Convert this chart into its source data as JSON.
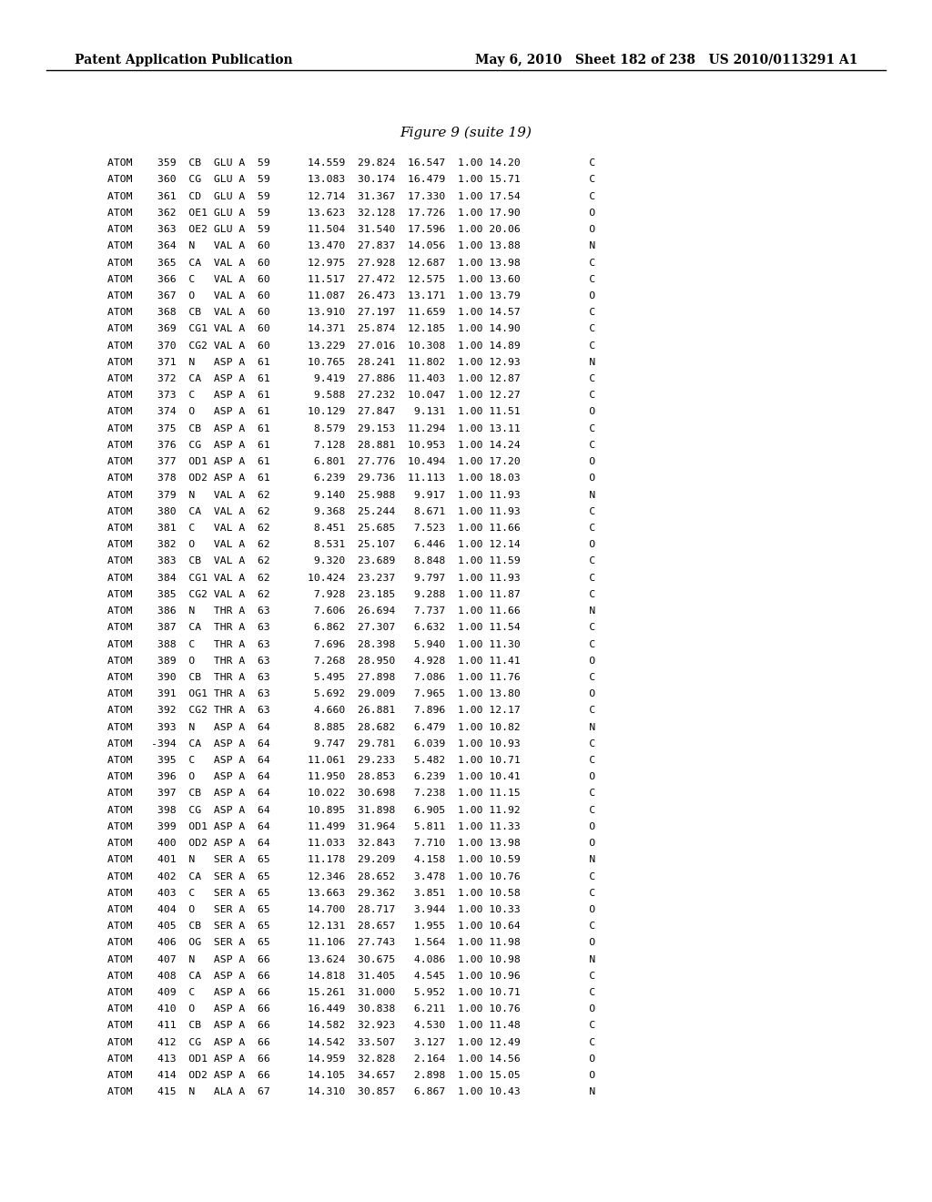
{
  "header_left": "Patent Application Publication",
  "header_right": "May 6, 2010   Sheet 182 of 238   US 2010/0113291 A1",
  "figure_title": "Figure 9 (suite 19)",
  "rows": [
    "ATOM    359  CB  GLU A  59      14.559  29.824  16.547  1.00 14.20           C",
    "ATOM    360  CG  GLU A  59      13.083  30.174  16.479  1.00 15.71           C",
    "ATOM    361  CD  GLU A  59      12.714  31.367  17.330  1.00 17.54           C",
    "ATOM    362  OE1 GLU A  59      13.623  32.128  17.726  1.00 17.90           O",
    "ATOM    363  OE2 GLU A  59      11.504  31.540  17.596  1.00 20.06           O",
    "ATOM    364  N   VAL A  60      13.470  27.837  14.056  1.00 13.88           N",
    "ATOM    365  CA  VAL A  60      12.975  27.928  12.687  1.00 13.98           C",
    "ATOM    366  C   VAL A  60      11.517  27.472  12.575  1.00 13.60           C",
    "ATOM    367  O   VAL A  60      11.087  26.473  13.171  1.00 13.79           O",
    "ATOM    368  CB  VAL A  60      13.910  27.197  11.659  1.00 14.57           C",
    "ATOM    369  CG1 VAL A  60      14.371  25.874  12.185  1.00 14.90           C",
    "ATOM    370  CG2 VAL A  60      13.229  27.016  10.308  1.00 14.89           C",
    "ATOM    371  N   ASP A  61      10.765  28.241  11.802  1.00 12.93           N",
    "ATOM    372  CA  ASP A  61       9.419  27.886  11.403  1.00 12.87           C",
    "ATOM    373  C   ASP A  61       9.588  27.232  10.047  1.00 12.27           C",
    "ATOM    374  O   ASP A  61      10.129  27.847   9.131  1.00 11.51           O",
    "ATOM    375  CB  ASP A  61       8.579  29.153  11.294  1.00 13.11           C",
    "ATOM    376  CG  ASP A  61       7.128  28.881  10.953  1.00 14.24           C",
    "ATOM    377  OD1 ASP A  61       6.801  27.776  10.494  1.00 17.20           O",
    "ATOM    378  OD2 ASP A  61       6.239  29.736  11.113  1.00 18.03           O",
    "ATOM    379  N   VAL A  62       9.140  25.988   9.917  1.00 11.93           N",
    "ATOM    380  CA  VAL A  62       9.368  25.244   8.671  1.00 11.93           C",
    "ATOM    381  C   VAL A  62       8.451  25.685   7.523  1.00 11.66           C",
    "ATOM    382  O   VAL A  62       8.531  25.107   6.446  1.00 12.14           O",
    "ATOM    383  CB  VAL A  62       9.320  23.689   8.848  1.00 11.59           C",
    "ATOM    384  CG1 VAL A  62      10.424  23.237   9.797  1.00 11.93           C",
    "ATOM    385  CG2 VAL A  62       7.928  23.185   9.288  1.00 11.87           C",
    "ATOM    386  N   THR A  63       7.606  26.694   7.737  1.00 11.66           N",
    "ATOM    387  CA  THR A  63       6.862  27.307   6.632  1.00 11.54           C",
    "ATOM    388  C   THR A  63       7.696  28.398   5.940  1.00 11.30           C",
    "ATOM    389  O   THR A  63       7.268  28.950   4.928  1.00 11.41           O",
    "ATOM    390  CB  THR A  63       5.495  27.898   7.086  1.00 11.76           C",
    "ATOM    391  OG1 THR A  63       5.692  29.009   7.965  1.00 13.80           O",
    "ATOM    392  CG2 THR A  63       4.660  26.881   7.896  1.00 12.17           C",
    "ATOM    393  N   ASP A  64       8.885  28.682   6.479  1.00 10.82           N",
    "ATOM   -394  CA  ASP A  64       9.747  29.781   6.039  1.00 10.93           C",
    "ATOM    395  C   ASP A  64      11.061  29.233   5.482  1.00 10.71           C",
    "ATOM    396  O   ASP A  64      11.950  28.853   6.239  1.00 10.41           O",
    "ATOM    397  CB  ASP A  64      10.022  30.698   7.238  1.00 11.15           C",
    "ATOM    398  CG  ASP A  64      10.895  31.898   6.905  1.00 11.92           C",
    "ATOM    399  OD1 ASP A  64      11.499  31.964   5.811  1.00 11.33           O",
    "ATOM    400  OD2 ASP A  64      11.033  32.843   7.710  1.00 13.98           O",
    "ATOM    401  N   SER A  65      11.178  29.209   4.158  1.00 10.59           N",
    "ATOM    402  CA  SER A  65      12.346  28.652   3.478  1.00 10.76           C",
    "ATOM    403  C   SER A  65      13.663  29.362   3.851  1.00 10.58           C",
    "ATOM    404  O   SER A  65      14.700  28.717   3.944  1.00 10.33           O",
    "ATOM    405  CB  SER A  65      12.131  28.657   1.955  1.00 10.64           C",
    "ATOM    406  OG  SER A  65      11.106  27.743   1.564  1.00 11.98           O",
    "ATOM    407  N   ASP A  66      13.624  30.675   4.086  1.00 10.98           N",
    "ATOM    408  CA  ASP A  66      14.818  31.405   4.545  1.00 10.96           C",
    "ATOM    409  C   ASP A  66      15.261  31.000   5.952  1.00 10.71           C",
    "ATOM    410  O   ASP A  66      16.449  30.838   6.211  1.00 10.76           O",
    "ATOM    411  CB  ASP A  66      14.582  32.923   4.530  1.00 11.48           C",
    "ATOM    412  CG  ASP A  66      14.542  33.507   3.127  1.00 12.49           C",
    "ATOM    413  OD1 ASP A  66      14.959  32.828   2.164  1.00 14.56           O",
    "ATOM    414  OD2 ASP A  66      14.105  34.657   2.898  1.00 15.05           O",
    "ATOM    415  N   ALA A  67      14.310  30.857   6.867  1.00 10.43           N"
  ]
}
